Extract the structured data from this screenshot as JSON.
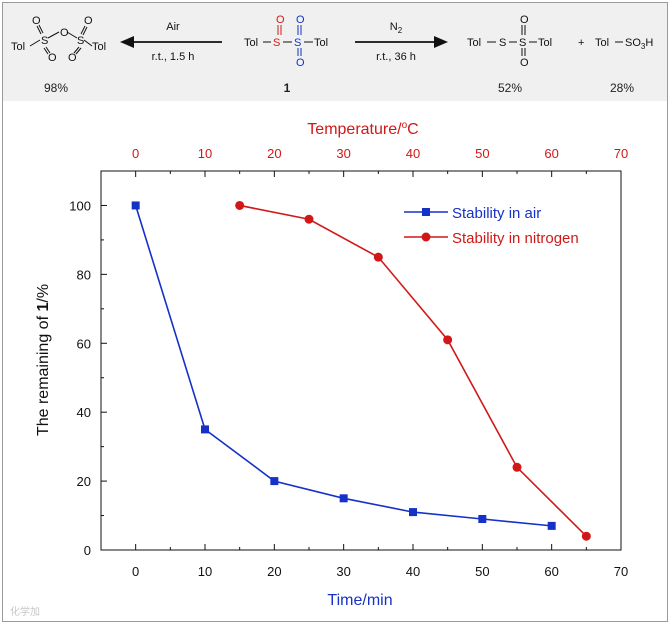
{
  "scheme": {
    "left_product": {
      "line1_left": "O",
      "line1_right": "O",
      "tol_left": "Tol",
      "s1": "S",
      "bridge_o": "O",
      "s2": "S",
      "tol_right": "Tol",
      "o_bottom_left": "O",
      "o_bottom_right": "O"
    },
    "arrow_left": {
      "top": "Air",
      "bottom": "r.t., 1.5 h"
    },
    "center_compound": {
      "tol_left": "Tol",
      "s1": "S",
      "s2": "S",
      "tol_right": "Tol",
      "o_top_s1": "O",
      "o_top_s2": "O",
      "o_bottom_s2": "O",
      "label": "1"
    },
    "arrow_right": {
      "top": "N",
      "top_sub": "2",
      "bottom": "r.t., 36 h"
    },
    "right_product": {
      "tol_left": "Tol",
      "s1": "S",
      "s2": "S",
      "tol_right": "Tol",
      "o_top": "O",
      "o_bottom": "O"
    },
    "plus": "+",
    "acid": {
      "text": "Tol",
      "formula": "SO",
      "sub": "3",
      "h": "H"
    },
    "yields": {
      "left": "98%",
      "center": "1",
      "right1": "52%",
      "right2": "28%"
    },
    "colors": {
      "s_red": "#d11818",
      "s_blue": "#1531c8"
    }
  },
  "chart_data": {
    "type": "line",
    "title": "",
    "xlabel": "Time/min",
    "x2label": "Temperature/°C",
    "ylabel": "The remaining of 1/%",
    "ylabel_prefix": "The remaining of ",
    "ylabel_bold": "1",
    "ylabel_suffix": "/%",
    "xlim": [
      -5,
      70
    ],
    "ylim": [
      0,
      110
    ],
    "x_ticks": [
      0,
      10,
      20,
      30,
      40,
      50,
      60,
      70
    ],
    "y_ticks": [
      0,
      20,
      40,
      60,
      80,
      100
    ],
    "x2_ticks": [
      0,
      10,
      20,
      30,
      40,
      50,
      60,
      70
    ],
    "grid": false,
    "legend_position": "top-right",
    "series": [
      {
        "name": "Stability in air",
        "axis": "bottom",
        "color": "#1531c8",
        "marker": "square",
        "x": [
          0,
          10,
          20,
          30,
          40,
          50,
          60
        ],
        "y": [
          100,
          35,
          20,
          15,
          11,
          9,
          7
        ]
      },
      {
        "name": "Stability in nitrogen",
        "axis": "top",
        "color": "#d11818",
        "marker": "circle",
        "x": [
          15,
          25,
          35,
          45,
          55,
          65
        ],
        "y": [
          100,
          96,
          85,
          61,
          24,
          4
        ]
      }
    ]
  },
  "watermark": "化学加"
}
